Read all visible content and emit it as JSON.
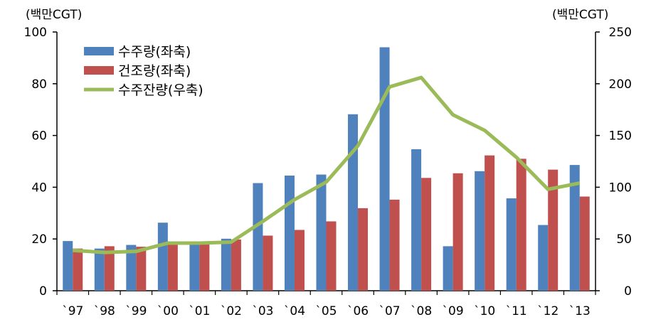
{
  "chart_data": {
    "type": "bar",
    "categories": [
      "`97",
      "`98",
      "`99",
      "`00",
      "`01",
      "`02",
      "`03",
      "`04",
      "`05",
      "`06",
      "`07",
      "`08",
      "`09",
      "`10",
      "`11",
      "`12",
      "`13"
    ],
    "series": [
      {
        "name": "수주량(좌축)",
        "kind": "bar",
        "axis": "left",
        "color": "#4f81bd",
        "values": [
          19.2,
          16.3,
          17.7,
          26.3,
          18.0,
          20.1,
          41.6,
          44.5,
          44.9,
          68.2,
          94.1,
          54.7,
          17.2,
          46.2,
          35.7,
          25.4,
          48.6
        ]
      },
      {
        "name": "건조량(좌축)",
        "kind": "bar",
        "axis": "left",
        "color": "#c0504d",
        "values": [
          16.3,
          17.2,
          17.0,
          18.1,
          17.9,
          19.8,
          21.3,
          23.5,
          26.8,
          31.9,
          35.2,
          43.6,
          45.4,
          52.3,
          51.0,
          46.8,
          36.4
        ]
      },
      {
        "name": "수주잔량(우축)",
        "kind": "line",
        "axis": "right",
        "color": "#9bbb59",
        "values": [
          39,
          37,
          38,
          46,
          46,
          47,
          67,
          88,
          105,
          140,
          197,
          206,
          170,
          155,
          129,
          98,
          104
        ]
      }
    ],
    "left_axis": {
      "unit": "(백만CGT)",
      "range": [
        0,
        100
      ],
      "ticks": [
        "0",
        "20",
        "40",
        "60",
        "80",
        "100"
      ]
    },
    "right_axis": {
      "unit": "(백만CGT)",
      "range": [
        0,
        250
      ],
      "ticks": [
        "0",
        "50",
        "100",
        "150",
        "200",
        "250"
      ]
    },
    "legend": "top-left"
  }
}
